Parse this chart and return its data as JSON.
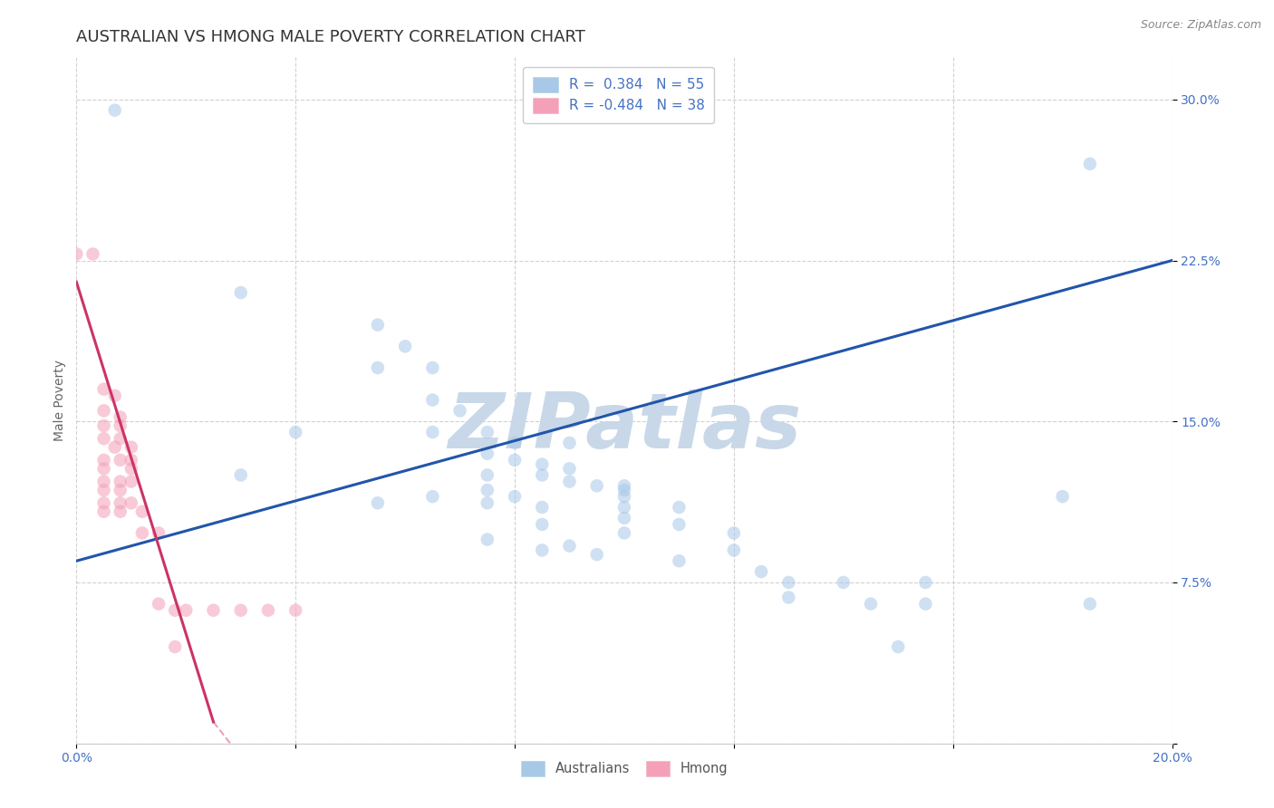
{
  "title": "AUSTRALIAN VS HMONG MALE POVERTY CORRELATION CHART",
  "source": "Source: ZipAtlas.com",
  "ylabel": "Male Poverty",
  "xlim": [
    0.0,
    0.2
  ],
  "ylim": [
    0.0,
    0.32
  ],
  "xticks": [
    0.0,
    0.04,
    0.08,
    0.12,
    0.16,
    0.2
  ],
  "xtick_labels": [
    "0.0%",
    "",
    "",
    "",
    "",
    "20.0%"
  ],
  "yticks": [
    0.0,
    0.075,
    0.15,
    0.225,
    0.3
  ],
  "ytick_labels": [
    "",
    "7.5%",
    "15.0%",
    "22.5%",
    "30.0%"
  ],
  "watermark": "ZIPatlas",
  "legend_label_blue": "R =  0.384   N = 55",
  "legend_label_pink": "R = -0.484   N = 38",
  "blue_scatter": [
    [
      0.007,
      0.295
    ],
    [
      0.03,
      0.21
    ],
    [
      0.055,
      0.195
    ],
    [
      0.06,
      0.185
    ],
    [
      0.055,
      0.175
    ],
    [
      0.065,
      0.175
    ],
    [
      0.065,
      0.16
    ],
    [
      0.07,
      0.155
    ],
    [
      0.04,
      0.145
    ],
    [
      0.065,
      0.145
    ],
    [
      0.075,
      0.145
    ],
    [
      0.08,
      0.14
    ],
    [
      0.09,
      0.14
    ],
    [
      0.075,
      0.135
    ],
    [
      0.08,
      0.132
    ],
    [
      0.085,
      0.13
    ],
    [
      0.09,
      0.128
    ],
    [
      0.03,
      0.125
    ],
    [
      0.075,
      0.125
    ],
    [
      0.085,
      0.125
    ],
    [
      0.09,
      0.122
    ],
    [
      0.095,
      0.12
    ],
    [
      0.1,
      0.12
    ],
    [
      0.1,
      0.118
    ],
    [
      0.075,
      0.118
    ],
    [
      0.065,
      0.115
    ],
    [
      0.08,
      0.115
    ],
    [
      0.1,
      0.115
    ],
    [
      0.055,
      0.112
    ],
    [
      0.075,
      0.112
    ],
    [
      0.085,
      0.11
    ],
    [
      0.1,
      0.11
    ],
    [
      0.11,
      0.11
    ],
    [
      0.1,
      0.105
    ],
    [
      0.085,
      0.102
    ],
    [
      0.11,
      0.102
    ],
    [
      0.1,
      0.098
    ],
    [
      0.12,
      0.098
    ],
    [
      0.075,
      0.095
    ],
    [
      0.09,
      0.092
    ],
    [
      0.085,
      0.09
    ],
    [
      0.12,
      0.09
    ],
    [
      0.095,
      0.088
    ],
    [
      0.11,
      0.085
    ],
    [
      0.125,
      0.08
    ],
    [
      0.13,
      0.075
    ],
    [
      0.14,
      0.075
    ],
    [
      0.13,
      0.068
    ],
    [
      0.145,
      0.065
    ],
    [
      0.155,
      0.065
    ],
    [
      0.155,
      0.075
    ],
    [
      0.18,
      0.115
    ],
    [
      0.185,
      0.27
    ],
    [
      0.185,
      0.065
    ],
    [
      0.15,
      0.045
    ]
  ],
  "pink_scatter": [
    [
      0.0,
      0.228
    ],
    [
      0.003,
      0.228
    ],
    [
      0.005,
      0.165
    ],
    [
      0.007,
      0.162
    ],
    [
      0.005,
      0.155
    ],
    [
      0.008,
      0.152
    ],
    [
      0.005,
      0.148
    ],
    [
      0.008,
      0.148
    ],
    [
      0.005,
      0.142
    ],
    [
      0.008,
      0.142
    ],
    [
      0.007,
      0.138
    ],
    [
      0.01,
      0.138
    ],
    [
      0.005,
      0.132
    ],
    [
      0.008,
      0.132
    ],
    [
      0.01,
      0.132
    ],
    [
      0.005,
      0.128
    ],
    [
      0.01,
      0.128
    ],
    [
      0.005,
      0.122
    ],
    [
      0.008,
      0.122
    ],
    [
      0.01,
      0.122
    ],
    [
      0.005,
      0.118
    ],
    [
      0.008,
      0.118
    ],
    [
      0.005,
      0.112
    ],
    [
      0.008,
      0.112
    ],
    [
      0.01,
      0.112
    ],
    [
      0.005,
      0.108
    ],
    [
      0.008,
      0.108
    ],
    [
      0.012,
      0.108
    ],
    [
      0.012,
      0.098
    ],
    [
      0.015,
      0.098
    ],
    [
      0.015,
      0.065
    ],
    [
      0.018,
      0.062
    ],
    [
      0.02,
      0.062
    ],
    [
      0.025,
      0.062
    ],
    [
      0.03,
      0.062
    ],
    [
      0.035,
      0.062
    ],
    [
      0.04,
      0.062
    ],
    [
      0.018,
      0.045
    ]
  ],
  "blue_line": [
    [
      0.0,
      0.085
    ],
    [
      0.2,
      0.225
    ]
  ],
  "pink_line_solid": [
    [
      0.0,
      0.215
    ],
    [
      0.025,
      0.01
    ]
  ],
  "pink_line_dash": [
    [
      0.025,
      0.01
    ],
    [
      0.065,
      -0.12
    ]
  ],
  "scatter_size": 110,
  "scatter_alpha": 0.55,
  "blue_color": "#a8c8e8",
  "pink_color": "#f4a0b8",
  "blue_line_color": "#2255aa",
  "pink_line_color": "#cc3366",
  "background_color": "#ffffff",
  "grid_color": "#cccccc",
  "title_fontsize": 13,
  "axis_label_fontsize": 10,
  "tick_fontsize": 10,
  "watermark_color": "#c8d8e8",
  "watermark_fontsize": 62
}
